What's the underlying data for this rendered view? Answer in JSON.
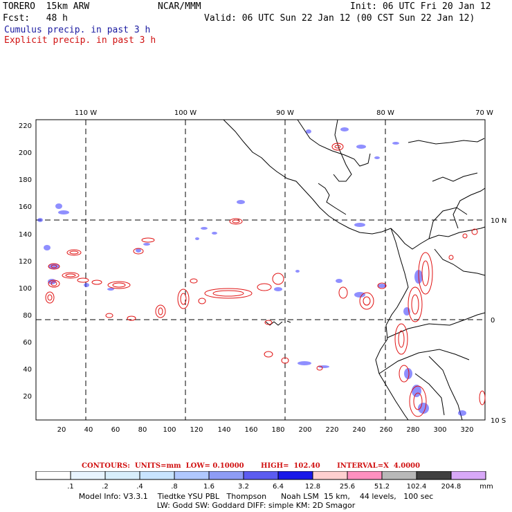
{
  "header": {
    "model": "TORERO  15km ARW",
    "org": "NCAR/MMM",
    "init": "Init: 06 UTC Fri 20 Jan 12",
    "fcst": "Fcst:   48 h",
    "valid": "Valid: 06 UTC Sun 22 Jan 12 (00 CST Sun 22 Jan 12)",
    "legend_cumulus": "Cumulus precip. in past 3 h",
    "legend_explicit": "Explicit precip. in past 3 h"
  },
  "map": {
    "lon_labels": [
      "110 W",
      "100 W",
      "90 W",
      "80 W",
      "70 W"
    ],
    "lat_labels": [
      "10 N",
      "0",
      "10 S"
    ],
    "x_ticks": [
      "20",
      "40",
      "60",
      "80",
      "100",
      "120",
      "140",
      "160",
      "180",
      "200",
      "220",
      "240",
      "260",
      "280",
      "300",
      "320"
    ],
    "y_ticks": [
      "220",
      "200",
      "180",
      "160",
      "140",
      "120",
      "100",
      "80",
      "60",
      "40",
      "20"
    ],
    "colors": {
      "cumulus": "#3333ff",
      "explicit": "#e01010",
      "coast": "#000000"
    }
  },
  "contours_line": "CONTOURS:  UNITS=mm  LOW= 0.10000       HIGH=  102.40       INTERVAL=X  4.0000",
  "scale": {
    "labels": [
      ".1",
      ".2",
      ".4",
      ".8",
      "1.6",
      "3.2",
      "6.4",
      "12.8",
      "25.6",
      "51.2",
      "102.4",
      "204.8"
    ],
    "unit": "mm",
    "colors": [
      "#ffffff",
      "#e8f4ff",
      "#d8eefb",
      "#c8e4ff",
      "#b0c8ff",
      "#8e9cf5",
      "#5c5cf0",
      "#1818e8",
      "#ffd0d0",
      "#ff90c0",
      "#b8b8b8",
      "#404040",
      "#d8a8f8"
    ]
  },
  "footer": {
    "line1": "Model Info: V3.3.1    Tiedtke YSU PBL   Thompson      Noah LSM  15 km,    44 levels,   100 sec",
    "line2": "LW: Godd SW: Goddard DIFF: simple KM: 2D Smagor"
  }
}
